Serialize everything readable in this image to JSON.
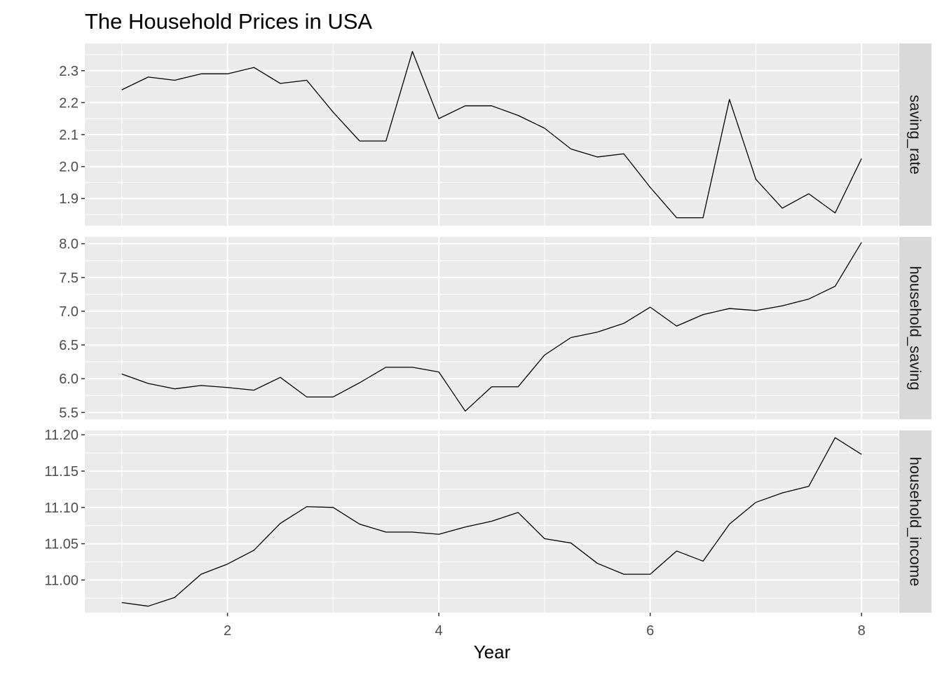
{
  "chart_data": {
    "type": "line",
    "title": "The Household Prices in USA",
    "xlabel": "Year",
    "x_ticks": [
      2,
      4,
      6,
      8
    ],
    "x_tick_labels": [
      "2",
      "4",
      "6",
      "8"
    ],
    "xlim": [
      0.65,
      8.35
    ],
    "x": [
      1,
      1.25,
      1.5,
      1.75,
      2,
      2.25,
      2.5,
      2.75,
      3,
      3.25,
      3.5,
      3.75,
      4,
      4.25,
      4.5,
      4.75,
      5,
      5.25,
      5.5,
      5.75,
      6,
      6.25,
      6.5,
      6.75,
      7,
      7.25,
      7.5,
      7.75,
      8
    ],
    "line_color": "#000000",
    "panel_background": "#ebebeb",
    "strip_background": "#d9d9d9",
    "grid": true,
    "facets": [
      {
        "label": "saving_rate",
        "ylim": [
          1.815,
          2.385
        ],
        "y_ticks": [
          1.9,
          2.0,
          2.1,
          2.2,
          2.3
        ],
        "y_tick_labels": [
          "1.9",
          "2.0",
          "2.1",
          "2.2",
          "2.3"
        ],
        "values": [
          2.24,
          2.28,
          2.27,
          2.29,
          2.29,
          2.31,
          2.26,
          2.27,
          2.17,
          2.08,
          2.08,
          2.36,
          2.15,
          2.19,
          2.19,
          2.16,
          2.12,
          2.055,
          2.03,
          2.04,
          1.935,
          1.84,
          1.84,
          2.21,
          1.96,
          1.87,
          1.915,
          1.855,
          2.025
        ]
      },
      {
        "label": "household_saving",
        "ylim": [
          5.4,
          8.1
        ],
        "y_ticks": [
          5.5,
          6.0,
          6.5,
          7.0,
          7.5,
          8.0
        ],
        "y_tick_labels": [
          "5.5",
          "6.0",
          "6.5",
          "7.0",
          "7.5",
          "8.0"
        ],
        "values": [
          6.07,
          5.93,
          5.85,
          5.9,
          5.87,
          5.83,
          6.02,
          5.73,
          5.73,
          5.94,
          6.17,
          6.17,
          6.1,
          5.52,
          5.88,
          5.88,
          6.35,
          6.61,
          6.69,
          6.82,
          7.06,
          6.78,
          6.95,
          7.04,
          7.01,
          7.08,
          7.18,
          7.37,
          8.02
        ]
      },
      {
        "label": "household_income",
        "ylim": [
          10.955,
          11.206
        ],
        "y_ticks": [
          11.0,
          11.05,
          11.1,
          11.15,
          11.2
        ],
        "y_tick_labels": [
          "11.00",
          "11.05",
          "11.10",
          "11.15",
          "11.20"
        ],
        "values": [
          10.969,
          10.964,
          10.976,
          11.008,
          11.022,
          11.041,
          11.078,
          11.101,
          11.1,
          11.077,
          11.066,
          11.066,
          11.063,
          11.073,
          11.081,
          11.093,
          11.057,
          11.051,
          11.023,
          11.008,
          11.008,
          11.04,
          11.026,
          11.077,
          11.107,
          11.12,
          11.129,
          11.196,
          11.173
        ]
      }
    ]
  }
}
